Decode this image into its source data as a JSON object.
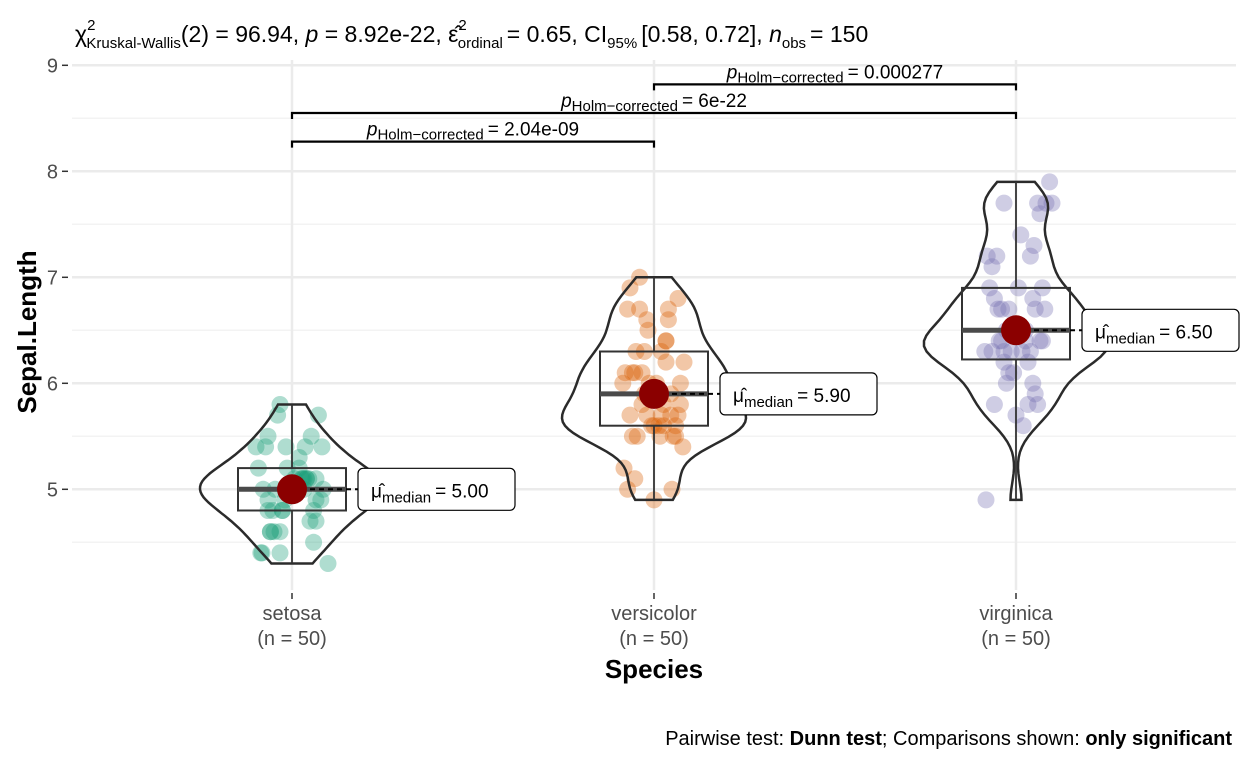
{
  "chart_data": {
    "type": "violin-box-scatter",
    "subtitle": {
      "stat_symbol": "χ",
      "stat_sup": "2",
      "stat_sub": "Kruskal-Wallis",
      "df_value": "(2) = 96.94,",
      "p_symbol": "p",
      "p_value": "= 8.92e-22,",
      "effect_symbol": "ε̂",
      "effect_sup": "2",
      "effect_sub": "ordinal",
      "effect_value": "= 0.65, CI",
      "ci_sub": "95%",
      "ci_value": "[0.58, 0.72],",
      "n_symbol": "n",
      "n_sub": "obs",
      "n_value": "= 150"
    },
    "xlabel": "Species",
    "ylabel": "Sepal.Length",
    "ylim": [
      4.05,
      9.05
    ],
    "yticks": [
      5,
      6,
      7,
      8,
      9
    ],
    "grid": true,
    "categories": [
      {
        "name": "setosa",
        "n_label": "(n = 50)",
        "color": "#1B9E77",
        "median": 5.0,
        "q1": 4.8,
        "q3": 5.2,
        "min": 4.3,
        "max": 5.8,
        "median_label": "= 5.00",
        "points": [
          [
            0.1,
            5.1
          ],
          [
            -0.2,
            4.9
          ],
          [
            0.15,
            4.7
          ],
          [
            -0.1,
            4.6
          ],
          [
            0.05,
            5.0
          ],
          [
            0.25,
            5.4
          ],
          [
            -0.15,
            4.6
          ],
          [
            0.1,
            5.0
          ],
          [
            -0.25,
            4.4
          ],
          [
            0.2,
            4.9
          ],
          [
            -0.05,
            5.4
          ],
          [
            0.18,
            4.8
          ],
          [
            -0.2,
            4.8
          ],
          [
            0.3,
            4.3
          ],
          [
            -0.1,
            5.8
          ],
          [
            0.22,
            5.7
          ],
          [
            -0.22,
            5.4
          ],
          [
            0.08,
            5.1
          ],
          [
            -0.12,
            5.7
          ],
          [
            0.14,
            5.1
          ],
          [
            -0.3,
            5.4
          ],
          [
            0.12,
            5.1
          ],
          [
            -0.18,
            4.6
          ],
          [
            0.02,
            5.1
          ],
          [
            -0.08,
            4.8
          ],
          [
            0.26,
            5.0
          ],
          [
            -0.24,
            5.0
          ],
          [
            0.06,
            5.2
          ],
          [
            -0.04,
            5.2
          ],
          [
            0.2,
            4.7
          ],
          [
            -0.16,
            4.8
          ],
          [
            0.11,
            5.4
          ],
          [
            -0.28,
            5.2
          ],
          [
            0.16,
            5.5
          ],
          [
            -0.06,
            4.9
          ],
          [
            0.04,
            5.0
          ],
          [
            -0.2,
            5.5
          ],
          [
            0.24,
            4.9
          ],
          [
            -0.1,
            4.4
          ],
          [
            0.09,
            5.1
          ],
          [
            -0.14,
            5.0
          ],
          [
            0.18,
            4.5
          ],
          [
            -0.26,
            4.4
          ],
          [
            0.0,
            5.0
          ],
          [
            0.12,
            5.1
          ],
          [
            -0.08,
            4.8
          ],
          [
            0.2,
            5.1
          ],
          [
            -0.18,
            4.6
          ],
          [
            0.06,
            5.3
          ],
          [
            -0.04,
            5.0
          ]
        ]
      },
      {
        "name": "versicolor",
        "n_label": "(n = 50)",
        "color": "#D95F02",
        "median": 5.9,
        "q1": 5.6,
        "q3": 6.3,
        "min": 4.9,
        "max": 7.0,
        "median_label": "= 5.90",
        "points": [
          [
            -0.12,
            7.0
          ],
          [
            0.1,
            6.4
          ],
          [
            -0.2,
            6.9
          ],
          [
            0.05,
            5.5
          ],
          [
            -0.05,
            6.5
          ],
          [
            0.2,
            5.7
          ],
          [
            -0.15,
            6.3
          ],
          [
            0.0,
            4.9
          ],
          [
            0.12,
            6.6
          ],
          [
            -0.25,
            5.2
          ],
          [
            0.15,
            5.0
          ],
          [
            -0.08,
            5.9
          ],
          [
            0.22,
            6.0
          ],
          [
            -0.18,
            6.1
          ],
          [
            0.08,
            5.6
          ],
          [
            -0.22,
            6.7
          ],
          [
            0.18,
            5.6
          ],
          [
            -0.1,
            5.8
          ],
          [
            0.25,
            6.2
          ],
          [
            -0.02,
            5.6
          ],
          [
            0.14,
            5.9
          ],
          [
            -0.16,
            6.1
          ],
          [
            0.06,
            6.3
          ],
          [
            -0.24,
            6.1
          ],
          [
            0.1,
            6.4
          ],
          [
            -0.06,
            6.6
          ],
          [
            0.2,
            6.8
          ],
          [
            -0.12,
            6.7
          ],
          [
            0.02,
            6.0
          ],
          [
            -0.2,
            5.7
          ],
          [
            0.16,
            5.5
          ],
          [
            -0.14,
            5.5
          ],
          [
            0.08,
            5.8
          ],
          [
            -0.04,
            6.0
          ],
          [
            0.24,
            5.4
          ],
          [
            -0.26,
            6.0
          ],
          [
            0.12,
            6.7
          ],
          [
            -0.08,
            6.3
          ],
          [
            0.04,
            5.6
          ],
          [
            -0.18,
            5.5
          ],
          [
            0.18,
            5.5
          ],
          [
            -0.1,
            6.1
          ],
          [
            0.22,
            5.8
          ],
          [
            -0.22,
            5.0
          ],
          [
            0.0,
            5.6
          ],
          [
            0.14,
            5.7
          ],
          [
            -0.06,
            5.7
          ],
          [
            0.1,
            6.2
          ],
          [
            -0.16,
            5.1
          ],
          [
            0.06,
            5.7
          ]
        ]
      },
      {
        "name": "virginica",
        "n_label": "(n = 50)",
        "color": "#7570B3",
        "median": 6.5,
        "q1": 6.225,
        "q3": 6.9,
        "min": 4.9,
        "max": 7.9,
        "median_label": "= 6.50",
        "points": [
          [
            -0.1,
            6.3
          ],
          [
            0.1,
            5.8
          ],
          [
            -0.2,
            7.1
          ],
          [
            0.05,
            6.3
          ],
          [
            -0.05,
            6.5
          ],
          [
            0.2,
            7.6
          ],
          [
            -0.25,
            4.9
          ],
          [
            0.15,
            7.3
          ],
          [
            -0.15,
            6.7
          ],
          [
            0.12,
            7.2
          ],
          [
            -0.08,
            6.5
          ],
          [
            0.22,
            6.4
          ],
          [
            -0.18,
            6.8
          ],
          [
            0.0,
            5.7
          ],
          [
            0.18,
            5.8
          ],
          [
            -0.12,
            6.4
          ],
          [
            0.08,
            6.5
          ],
          [
            0.3,
            7.7
          ],
          [
            -0.1,
            7.7
          ],
          [
            0.14,
            6.0
          ],
          [
            -0.22,
            6.9
          ],
          [
            0.06,
            5.6
          ],
          [
            0.25,
            7.7
          ],
          [
            -0.04,
            6.3
          ],
          [
            0.16,
            6.7
          ],
          [
            -0.16,
            7.2
          ],
          [
            0.1,
            6.2
          ],
          [
            -0.06,
            6.1
          ],
          [
            0.2,
            6.4
          ],
          [
            -0.24,
            7.2
          ],
          [
            0.04,
            7.4
          ],
          [
            0.28,
            7.9
          ],
          [
            -0.14,
            6.4
          ],
          [
            0.12,
            6.3
          ],
          [
            -0.02,
            6.1
          ],
          [
            0.18,
            7.7
          ],
          [
            -0.2,
            6.3
          ],
          [
            0.08,
            6.4
          ],
          [
            -0.08,
            6.0
          ],
          [
            0.22,
            6.9
          ],
          [
            -0.12,
            6.7
          ],
          [
            0.02,
            6.9
          ],
          [
            -0.18,
            5.8
          ],
          [
            0.14,
            6.8
          ],
          [
            -0.06,
            6.7
          ],
          [
            0.24,
            6.7
          ],
          [
            -0.26,
            6.3
          ],
          [
            0.06,
            6.5
          ],
          [
            -0.1,
            6.2
          ],
          [
            0.16,
            5.9
          ]
        ]
      }
    ],
    "comparisons": [
      {
        "from": 1,
        "to": 2,
        "y": 8.82,
        "p_symbol": "p",
        "p_sub": "Holm−corrected",
        "p_value": "= 0.000277"
      },
      {
        "from": 0,
        "to": 2,
        "y": 8.55,
        "p_symbol": "p",
        "p_sub": "Holm−corrected",
        "p_value": "= 6e-22"
      },
      {
        "from": 0,
        "to": 1,
        "y": 8.28,
        "p_symbol": "p",
        "p_sub": "Holm−corrected",
        "p_value": "= 2.04e-09"
      }
    ],
    "median_symbol": "μ̂",
    "median_sub": "median",
    "caption": {
      "prefix": "Pairwise test: ",
      "test": "Dunn test",
      "middle": "; Comparisons shown: ",
      "shown": "only significant"
    },
    "colors": {
      "center_point": "#8B0000",
      "grid": "#ebebeb",
      "line": "#333333"
    }
  }
}
